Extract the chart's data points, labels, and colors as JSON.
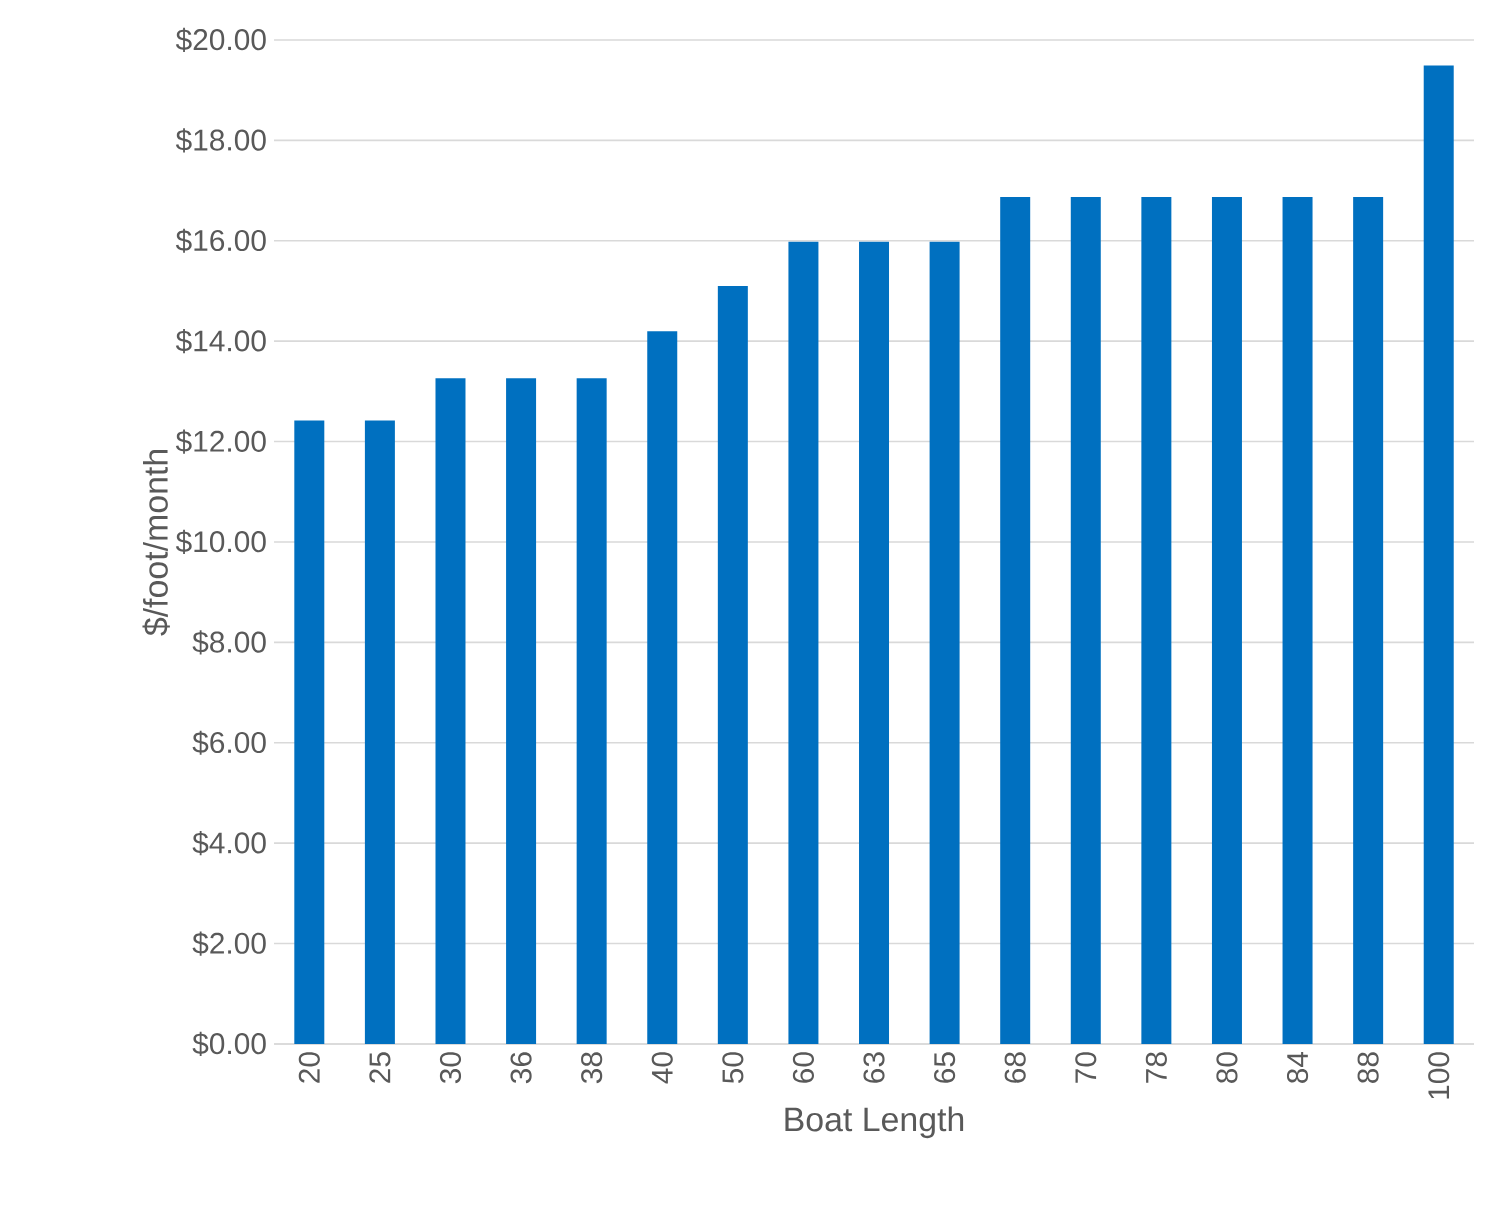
{
  "chart_data": {
    "type": "bar",
    "xlabel": "Boat Length",
    "ylabel": "$/foot/month",
    "categories": [
      "20",
      "25",
      "30",
      "36",
      "38",
      "40",
      "50",
      "60",
      "63",
      "65",
      "68",
      "70",
      "78",
      "80",
      "84",
      "88",
      "100"
    ],
    "values": [
      12.42,
      12.42,
      13.26,
      13.26,
      13.26,
      14.2,
      15.1,
      15.98,
      15.98,
      15.98,
      16.87,
      16.87,
      16.87,
      16.87,
      16.87,
      16.87,
      19.49
    ],
    "color": "#0070c0",
    "ylim": [
      0,
      20
    ],
    "yticks": [
      {
        "value": 0,
        "label": "$0.00"
      },
      {
        "value": 2,
        "label": "$2.00"
      },
      {
        "value": 4,
        "label": "$4.00"
      },
      {
        "value": 6,
        "label": "$6.00"
      },
      {
        "value": 8,
        "label": "$8.00"
      },
      {
        "value": 10,
        "label": "$10.00"
      },
      {
        "value": 12,
        "label": "$12.00"
      },
      {
        "value": 14,
        "label": "$14.00"
      },
      {
        "value": 16,
        "label": "$16.00"
      },
      {
        "value": 18,
        "label": "$18.00"
      },
      {
        "value": 20,
        "label": "$20.00"
      }
    ],
    "grid": "y"
  }
}
